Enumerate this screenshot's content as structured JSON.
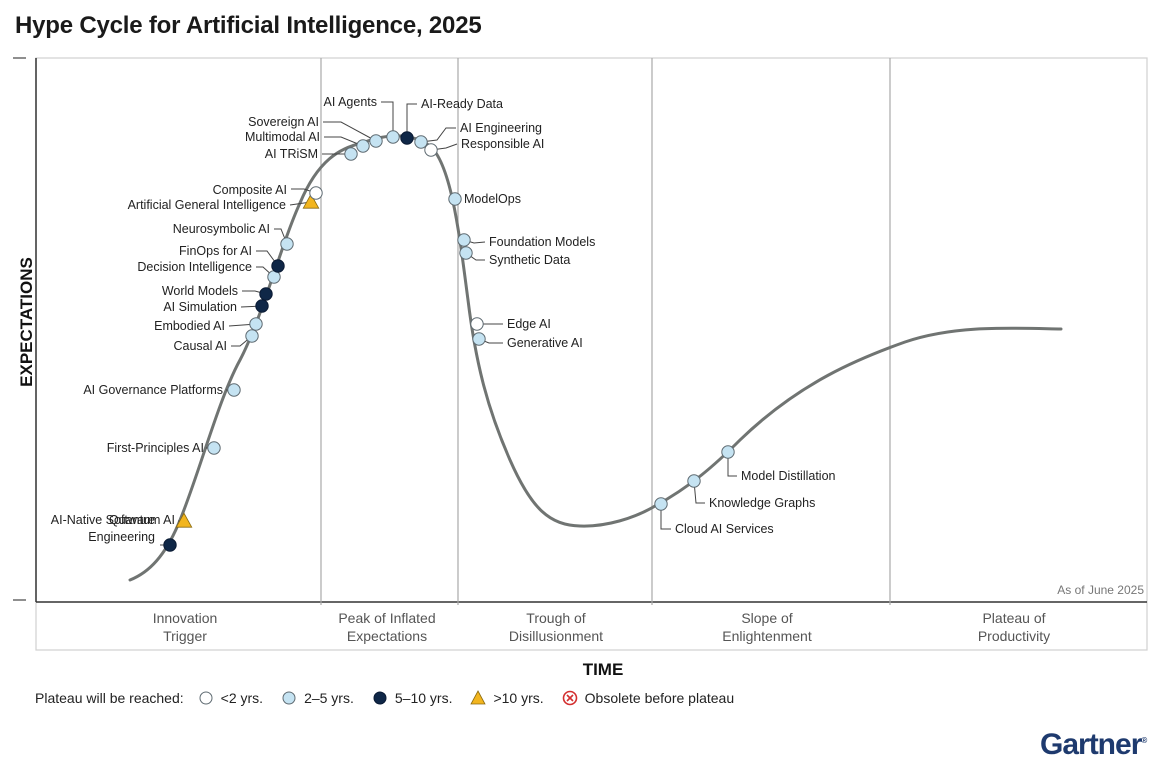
{
  "title": "Hype Cycle for Artificial Intelligence, 2025",
  "brand": "Gartner",
  "brand_mark": "®",
  "colors": {
    "lt2": "#ffffff",
    "y2to5": "#c5e3f2",
    "y5to10": "#0f2747",
    "gt10": "#f2b51e",
    "curve": "#707472",
    "obsolete": "#d32f2f"
  },
  "chart_data": {
    "type": "scatter",
    "title": "Hype Cycle for Artificial Intelligence, 2025",
    "xlabel": "TIME",
    "ylabel": "EXPECTATIONS",
    "as_of": "As of June 2025",
    "phases": [
      "Innovation\nTrigger",
      "Peak of Inflated\nExpectations",
      "Trough of\nDisillusionment",
      "Slope of\nEnlightenment",
      "Plateau of\nProductivity"
    ],
    "legend": {
      "title": "Plateau will be reached:",
      "items": [
        {
          "key": "lt2",
          "label": "<2 yrs."
        },
        {
          "key": "y2to5",
          "label": "2–5 yrs."
        },
        {
          "key": "y5to10",
          "label": "5–10 yrs."
        },
        {
          "key": "gt10",
          "label": ">10 yrs."
        },
        {
          "key": "obsolete",
          "label": "Obsolete before plateau"
        }
      ]
    },
    "points": [
      {
        "name": "AI-Native Software\nEngineering",
        "plateau": "y5to10"
      },
      {
        "name": "Quantum AI",
        "plateau": "gt10"
      },
      {
        "name": "First-Principles AI",
        "plateau": "y2to5"
      },
      {
        "name": "AI Governance Platforms",
        "plateau": "y2to5"
      },
      {
        "name": "Causal AI",
        "plateau": "y2to5"
      },
      {
        "name": "Embodied AI",
        "plateau": "y2to5"
      },
      {
        "name": "AI Simulation",
        "plateau": "y5to10"
      },
      {
        "name": "World Models",
        "plateau": "y5to10"
      },
      {
        "name": "Decision Intelligence",
        "plateau": "y2to5"
      },
      {
        "name": "FinOps for AI",
        "plateau": "y5to10"
      },
      {
        "name": "Neurosymbolic AI",
        "plateau": "y2to5"
      },
      {
        "name": "Artificial General Intelligence",
        "plateau": "gt10"
      },
      {
        "name": "Composite AI",
        "plateau": "lt2"
      },
      {
        "name": "AI TRiSM",
        "plateau": "y2to5"
      },
      {
        "name": "Multimodal AI",
        "plateau": "y2to5"
      },
      {
        "name": "Sovereign AI",
        "plateau": "y2to5"
      },
      {
        "name": "AI Agents",
        "plateau": "y2to5"
      },
      {
        "name": "AI-Ready Data",
        "plateau": "y5to10"
      },
      {
        "name": "AI Engineering",
        "plateau": "y2to5"
      },
      {
        "name": "Responsible AI",
        "plateau": "lt2"
      },
      {
        "name": "ModelOps",
        "plateau": "y2to5"
      },
      {
        "name": "Foundation Models",
        "plateau": "y2to5"
      },
      {
        "name": "Synthetic Data",
        "plateau": "y2to5"
      },
      {
        "name": "Edge AI",
        "plateau": "lt2"
      },
      {
        "name": "Generative AI",
        "plateau": "y2to5"
      },
      {
        "name": "Cloud AI Services",
        "plateau": "y2to5"
      },
      {
        "name": "Knowledge Graphs",
        "plateau": "y2to5"
      },
      {
        "name": "Model Distillation",
        "plateau": "y2to5"
      }
    ]
  }
}
